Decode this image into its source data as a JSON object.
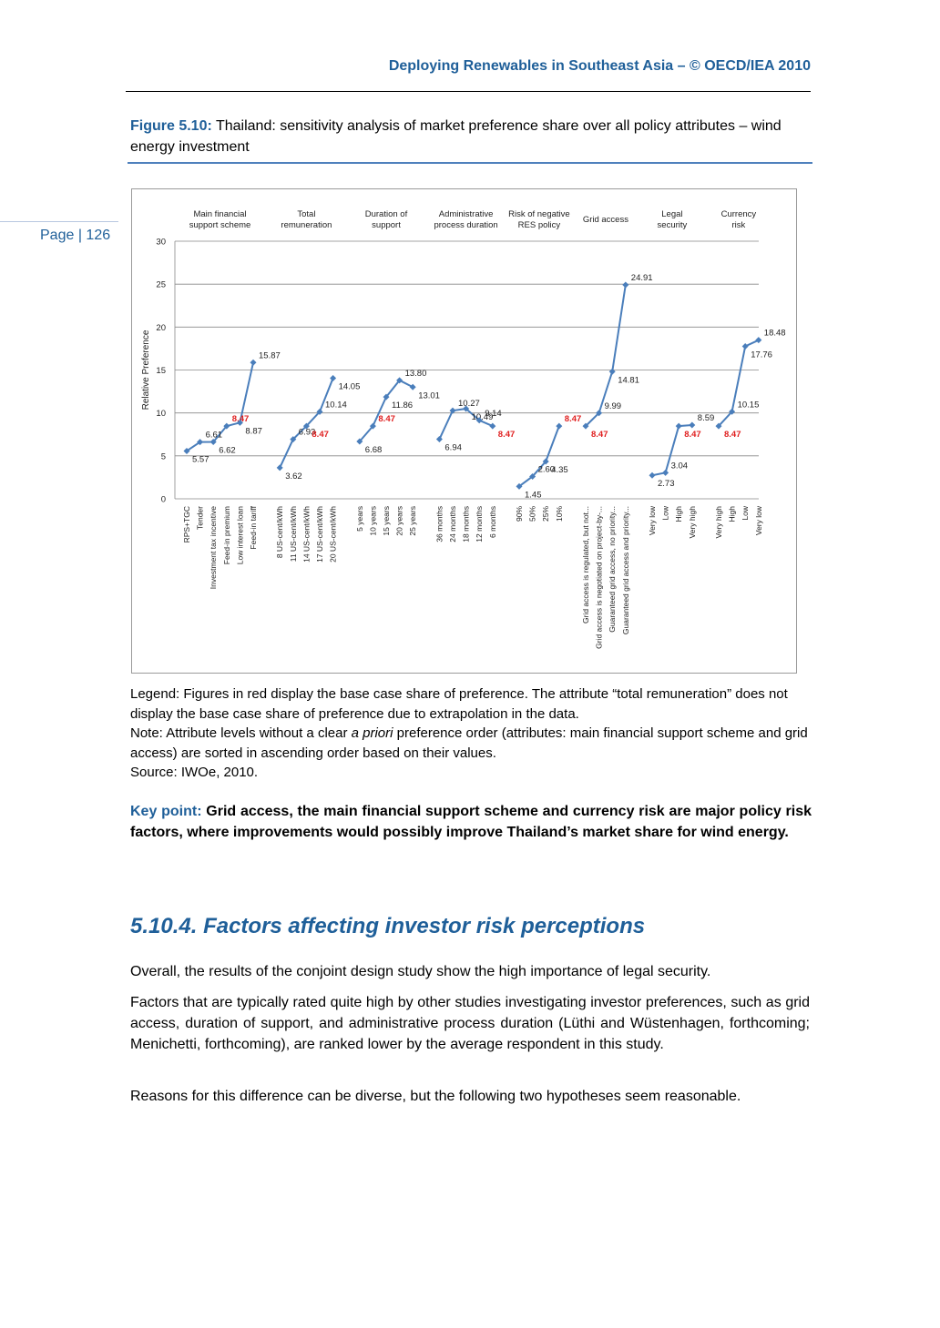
{
  "header": {
    "running_title": "Deploying Renewables in Southeast Asia – © OECD/IEA 2010"
  },
  "page": {
    "label": "Page | 126"
  },
  "figure": {
    "label": "Figure 5.10:",
    "caption": "Thailand: sensitivity analysis of market preference share over all policy attributes – wind energy investment"
  },
  "chart_data": {
    "type": "line",
    "ylabel": "Relative Preference",
    "ylim": [
      0,
      30
    ],
    "yticks": [
      0,
      5,
      10,
      15,
      20,
      25,
      30
    ],
    "grid": true,
    "groups": [
      {
        "title_lines": [
          "Main financial",
          "support scheme"
        ],
        "levels": [
          "RPS+TGC",
          "Tender",
          "Investment tax incentive",
          "Feed-in premium",
          "Low interest loan",
          "Feed-in tariff"
        ],
        "values": [
          5.57,
          6.61,
          6.62,
          8.47,
          8.87,
          15.87
        ],
        "labels": [
          "5.57",
          "6.61",
          "6.62",
          "8.47",
          "8.87",
          "15.87"
        ],
        "base_index": 3
      },
      {
        "title_lines": [
          "Total",
          "remuneration"
        ],
        "levels": [
          "8 US-cent/kWh",
          "11 US-cent/kWh",
          "14 US-cent/kWh",
          "17 US-cent/kWh",
          "20 US-cent/kWh"
        ],
        "values": [
          3.62,
          6.93,
          8.47,
          10.14,
          14.05
        ],
        "labels": [
          "3.62",
          "6.93",
          "8.47",
          "10.14",
          "14.05"
        ],
        "base_index": 2
      },
      {
        "title_lines": [
          "Duration of",
          "support"
        ],
        "levels": [
          "5 years",
          "10 years",
          "15 years",
          "20 years",
          "25 years"
        ],
        "values": [
          6.68,
          8.47,
          11.86,
          13.8,
          13.01
        ],
        "labels": [
          "6.68",
          "8.47",
          "11.86",
          "13.80",
          "13.01"
        ],
        "base_index": 1
      },
      {
        "title_lines": [
          "Administrative",
          "process duration"
        ],
        "levels": [
          "36 months",
          "24 months",
          "18 months",
          "12 months",
          "6 months"
        ],
        "values": [
          6.94,
          10.27,
          10.49,
          9.14,
          8.47
        ],
        "labels": [
          "6.94",
          "10.27",
          "10.49",
          "9.14",
          "8.47"
        ],
        "base_index": 4
      },
      {
        "title_lines": [
          "Risk of negative",
          "RES policy"
        ],
        "levels": [
          "90%",
          "50%",
          "25%",
          "10%"
        ],
        "values": [
          1.45,
          2.6,
          4.35,
          8.47
        ],
        "labels": [
          "1.45",
          "2.60",
          "4.35",
          "8.47"
        ],
        "base_index": 3
      },
      {
        "title_lines": [
          "Grid access"
        ],
        "levels": [
          "Grid access is regulated, but not...",
          "Grid access is negotiated on project-by-...",
          "Guaranteed grid access, no priority...",
          "Guaranteed grid access and priority..."
        ],
        "values": [
          8.47,
          9.99,
          14.81,
          24.91
        ],
        "labels": [
          "8.47",
          "9.99",
          "14.81",
          "24.91"
        ],
        "base_index": 0
      },
      {
        "title_lines": [
          "Legal",
          "security"
        ],
        "levels": [
          "Very low",
          "Low",
          "High",
          "Very high"
        ],
        "values": [
          2.73,
          3.04,
          8.47,
          8.59
        ],
        "labels": [
          "2.73",
          "3.04",
          "8.47",
          "8.59"
        ],
        "base_index": 2
      },
      {
        "title_lines": [
          "Currency",
          "risk"
        ],
        "levels": [
          "Very high",
          "High",
          "Low",
          "Very low"
        ],
        "values": [
          8.47,
          10.15,
          17.76,
          18.48
        ],
        "labels": [
          "8.47",
          "10.15",
          "17.76",
          "18.48"
        ],
        "base_index": 0
      }
    ],
    "colors": {
      "line": "#4A7EBB",
      "base_label": "#E02020",
      "grid": "#888888"
    }
  },
  "legend_text": {
    "line1": "Legend: Figures in red display the base case share of preference. The attribute “total remuneration” does not display the base case share of preference due to extrapolation in the data.",
    "note_pre": "Note: Attribute levels without a clear ",
    "note_em": "a priori",
    "note_post": " preference order (attributes: main financial support scheme and grid access) are sorted in ascending order based on their values.",
    "source": "Source: IWOe, 2010."
  },
  "key_point": {
    "label": "Key point:",
    "text": "Grid access, the main financial support scheme and currency risk are major policy risk factors, where improvements would possibly improve Thailand’s market share for wind energy."
  },
  "section": {
    "title": "5.10.4. Factors affecting investor risk perceptions",
    "paragraphs": [
      "Overall, the results of the conjoint design study show the high importance of legal security.",
      "Factors that are typically rated quite high by other studies investigating investor preferences, such as grid access, duration of support, and administrative process duration (Lüthi and Wüstenhagen, forthcoming; Menichetti, forthcoming), are ranked lower by the average respondent in this study.",
      "Reasons for this difference can be diverse, but the following two hypotheses seem reasonable."
    ]
  }
}
